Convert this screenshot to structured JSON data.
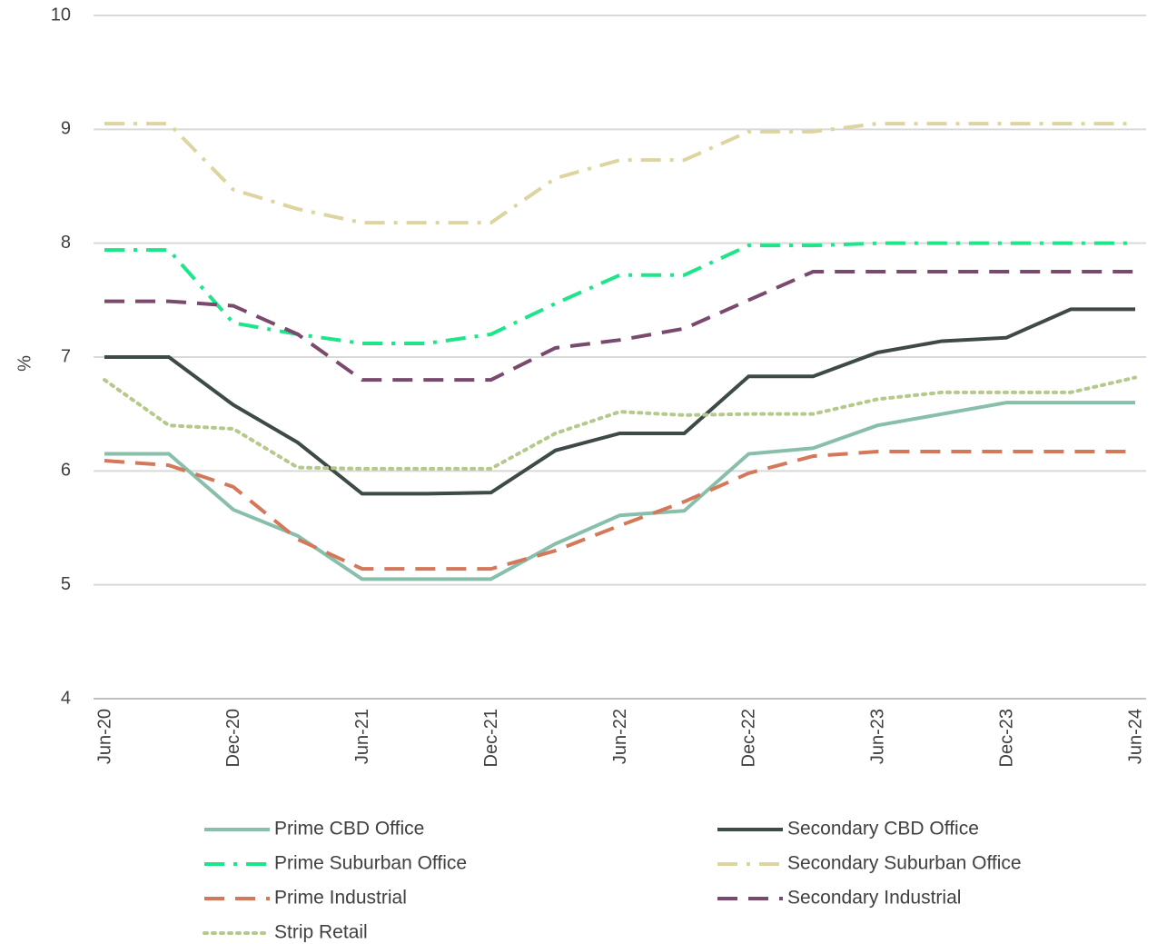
{
  "chart_data": {
    "type": "line",
    "ylabel": "%",
    "categories": [
      "Jun-20",
      null,
      "Dec-20",
      null,
      "Jun-21",
      null,
      "Dec-21",
      null,
      "Jun-22",
      null,
      "Dec-22",
      null,
      "Jun-23",
      null,
      "Dec-23",
      null,
      "Jun-24"
    ],
    "ylim": [
      4,
      10
    ],
    "yticks": [
      4,
      5,
      6,
      7,
      8,
      9,
      10
    ],
    "grid": true,
    "legend": "bottom",
    "series": [
      {
        "name": "Prime CBD Office",
        "color": "#88bfaa",
        "style": "solid",
        "values": [
          6.15,
          6.15,
          5.66,
          5.43,
          5.05,
          5.05,
          5.05,
          5.36,
          5.61,
          5.65,
          6.15,
          6.2,
          6.4,
          6.5,
          6.6,
          6.6,
          6.6
        ]
      },
      {
        "name": "Secondary CBD Office",
        "color": "#3d4a48",
        "style": "solid",
        "values": [
          7.0,
          7.0,
          6.58,
          6.25,
          5.8,
          5.8,
          5.81,
          6.18,
          6.33,
          6.33,
          6.83,
          6.83,
          7.04,
          7.14,
          7.17,
          7.42,
          7.42
        ]
      },
      {
        "name": "Prime Suburban Office",
        "color": "#1de58a",
        "style": "dashdot",
        "values": [
          7.94,
          7.94,
          7.3,
          7.2,
          7.12,
          7.12,
          7.2,
          7.47,
          7.72,
          7.72,
          7.98,
          7.98,
          8.0,
          8.0,
          8.0,
          8.0,
          8.0
        ]
      },
      {
        "name": "Secondary Suburban Office",
        "color": "#ddd5a0",
        "style": "dashdot",
        "values": [
          9.05,
          9.05,
          8.47,
          8.3,
          8.18,
          8.18,
          8.18,
          8.57,
          8.73,
          8.73,
          8.98,
          8.98,
          9.05,
          9.05,
          9.05,
          9.05,
          9.05
        ]
      },
      {
        "name": "Prime Industrial",
        "color": "#d4785a",
        "style": "dashed",
        "values": [
          6.09,
          6.05,
          5.86,
          5.4,
          5.14,
          5.14,
          5.14,
          5.3,
          5.52,
          5.73,
          5.98,
          6.13,
          6.17,
          6.17,
          6.17,
          6.17,
          6.17
        ]
      },
      {
        "name": "Secondary Industrial",
        "color": "#7a4a6e",
        "style": "dashed",
        "values": [
          7.49,
          7.49,
          7.45,
          7.2,
          6.8,
          6.8,
          6.8,
          7.08,
          7.15,
          7.25,
          7.5,
          7.75,
          7.75,
          7.75,
          7.75,
          7.75,
          7.75
        ]
      },
      {
        "name": "Strip Retail",
        "color": "#b5c98b",
        "style": "dotted",
        "values": [
          6.8,
          6.4,
          6.37,
          6.03,
          6.02,
          6.02,
          6.02,
          6.33,
          6.52,
          6.49,
          6.5,
          6.5,
          6.63,
          6.69,
          6.69,
          6.69,
          6.82
        ]
      }
    ]
  }
}
